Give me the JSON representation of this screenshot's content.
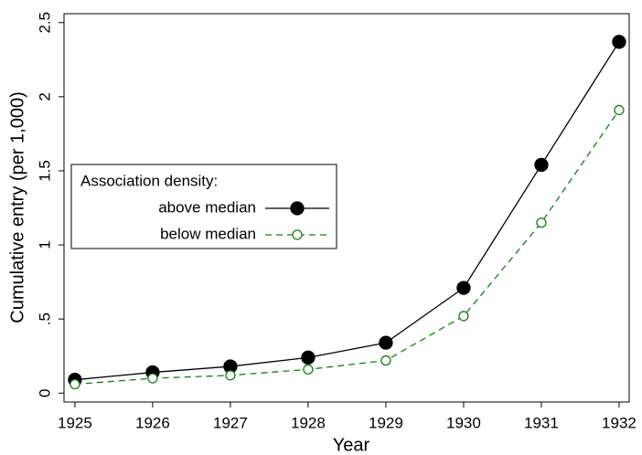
{
  "chart_data": {
    "type": "line",
    "xlabel": "Year",
    "ylabel": "Cumulative entry (per 1,000)",
    "x": [
      1925,
      1926,
      1927,
      1928,
      1929,
      1930,
      1931,
      1932
    ],
    "series": [
      {
        "name": "above median",
        "color": "#000000",
        "marker": "filled",
        "dash": "solid",
        "values": [
          0.09,
          0.14,
          0.18,
          0.24,
          0.34,
          0.71,
          1.54,
          2.37
        ]
      },
      {
        "name": "below median",
        "color": "#1a7a1a",
        "marker": "hollow",
        "dash": "dashed",
        "values": [
          0.06,
          0.1,
          0.12,
          0.16,
          0.22,
          0.52,
          1.15,
          1.91
        ]
      }
    ],
    "legend_title": "Association density:",
    "legend_position": "left",
    "xlim": [
      1924.86,
      1932.13
    ],
    "ylim": [
      -0.06,
      2.56
    ],
    "xticks": [
      1925,
      1926,
      1927,
      1928,
      1929,
      1930,
      1931,
      1932
    ],
    "yticks": [
      0,
      {
        "value": 0.5,
        "label": ".5"
      },
      1,
      1.5,
      2,
      2.5
    ],
    "grid": false
  }
}
